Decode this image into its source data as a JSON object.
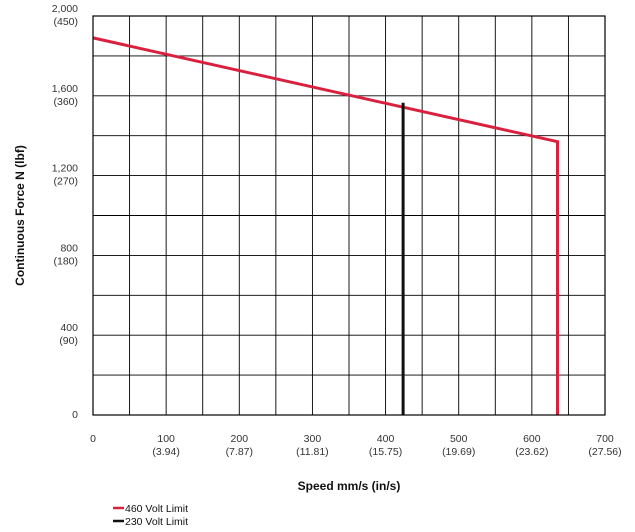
{
  "chart_data": {
    "type": "line",
    "xlabel": "Speed mm/s (in/s)",
    "ylabel": "Continuous Force N (lbf)",
    "xlim": [
      0,
      700
    ],
    "ylim": [
      0,
      2000
    ],
    "x_ticks": [
      {
        "value": 0,
        "label": "0",
        "sub": ""
      },
      {
        "value": 100,
        "label": "100",
        "sub": "(3.94)"
      },
      {
        "value": 200,
        "label": "200",
        "sub": "(7.87)"
      },
      {
        "value": 300,
        "label": "300",
        "sub": "(11.81)"
      },
      {
        "value": 400,
        "label": "400",
        "sub": "(15.75)"
      },
      {
        "value": 500,
        "label": "500",
        "sub": "(19.69)"
      },
      {
        "value": 600,
        "label": "600",
        "sub": "(23.62)"
      },
      {
        "value": 700,
        "label": "700",
        "sub": "(27.56)"
      }
    ],
    "y_ticks": [
      {
        "value": 0,
        "label": "0",
        "sub": ""
      },
      {
        "value": 400,
        "label": "400",
        "sub": "(90)"
      },
      {
        "value": 800,
        "label": "800",
        "sub": "(180)"
      },
      {
        "value": 1200,
        "label": "1,200",
        "sub": "(270)"
      },
      {
        "value": 1600,
        "label": "1,600",
        "sub": "(360)"
      },
      {
        "value": 2000,
        "label": "2,000",
        "sub": "(450)"
      }
    ],
    "x_gridlines": [
      50,
      100,
      150,
      200,
      250,
      300,
      350,
      400,
      450,
      500,
      550,
      600,
      650
    ],
    "y_gridlines": [
      200,
      400,
      600,
      800,
      1000,
      1200,
      1400,
      1600,
      1800
    ],
    "grid": true,
    "legend_position": "bottom-left",
    "series": [
      {
        "name": "460 Volt Limit",
        "color": "#d9213f",
        "points": [
          [
            0,
            1890
          ],
          [
            635,
            1370
          ],
          [
            635,
            0
          ]
        ]
      },
      {
        "name": "230 Volt Limit",
        "color": "#111111",
        "points": [
          [
            424,
            1565
          ],
          [
            424,
            0
          ]
        ]
      }
    ]
  }
}
